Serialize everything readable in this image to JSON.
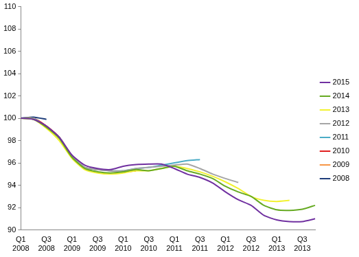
{
  "chart_data": {
    "type": "line",
    "categories": [
      "Q1 2008",
      null,
      "Q3 2008",
      null,
      "Q1 2009",
      null,
      "Q3 2009",
      null,
      "Q1 2010",
      null,
      "Q3 2010",
      null,
      "Q1 2011",
      null,
      "Q3 2011",
      null,
      "Q1 2012",
      null,
      "Q3 2012",
      null,
      "Q1 2013",
      null,
      "Q3 2013",
      null
    ],
    "series": [
      {
        "name": "2008",
        "color": "#1f3e7a",
        "values": [
          100,
          100.1,
          99.9,
          null,
          null,
          null,
          null,
          null,
          null,
          null,
          null,
          null,
          null,
          null,
          null,
          null,
          null,
          null,
          null,
          null,
          null,
          null,
          null,
          null
        ]
      },
      {
        "name": "2009",
        "color": "#f79646",
        "values": [
          100,
          100,
          99.3,
          98.3,
          96.6,
          null,
          null,
          null,
          null,
          null,
          null,
          null,
          null,
          null,
          null,
          null,
          null,
          null,
          null,
          null,
          null,
          null,
          null,
          null
        ]
      },
      {
        "name": "2010",
        "color": "#e02020",
        "values": [
          100,
          100,
          99.3,
          98.3,
          96.6,
          95.6,
          95.4,
          95.3,
          95.2,
          95.3,
          null,
          null,
          null,
          null,
          null,
          null,
          null,
          null,
          null,
          null,
          null,
          null,
          null,
          null
        ]
      },
      {
        "name": "2011",
        "color": "#4bacc6",
        "values": [
          100,
          100,
          99.2,
          98.3,
          96.6,
          95.6,
          95.4,
          95.3,
          95.3,
          95.5,
          95.6,
          95.8,
          96.0,
          96.2,
          96.3,
          null,
          null,
          null,
          null,
          null,
          null,
          null,
          null,
          null
        ]
      },
      {
        "name": "2012",
        "color": "#a5a5a5",
        "values": [
          100,
          100,
          99.2,
          98.3,
          96.6,
          95.6,
          95.4,
          95.3,
          95.3,
          95.5,
          95.6,
          95.7,
          95.8,
          95.9,
          95.5,
          95.0,
          94.6,
          94.25,
          null,
          null,
          null,
          null,
          null,
          null
        ]
      },
      {
        "name": "2013",
        "color": "#f2f230",
        "values": [
          100,
          99.9,
          99.1,
          98.0,
          96.4,
          95.4,
          95.1,
          95.0,
          95.1,
          95.3,
          95.3,
          95.5,
          95.7,
          95.5,
          95.2,
          94.8,
          94.3,
          93.7,
          93.0,
          92.65,
          92.55,
          92.65,
          null,
          null
        ]
      },
      {
        "name": "2014",
        "color": "#66aa22",
        "values": [
          100,
          99.9,
          99.2,
          98.2,
          96.5,
          95.5,
          95.2,
          95.1,
          95.2,
          95.4,
          95.3,
          95.5,
          95.7,
          95.3,
          95.0,
          94.6,
          93.9,
          93.4,
          93.0,
          92.2,
          91.8,
          91.75,
          91.85,
          92.2
        ]
      },
      {
        "name": "2015",
        "color": "#7030a0",
        "values": [
          100,
          99.9,
          99.3,
          98.3,
          96.7,
          95.8,
          95.5,
          95.4,
          95.7,
          95.85,
          95.9,
          95.9,
          95.5,
          95.0,
          94.7,
          94.2,
          93.4,
          92.7,
          92.2,
          91.3,
          90.9,
          90.75,
          90.75,
          91.0
        ]
      }
    ],
    "ylim": [
      90,
      110
    ],
    "yticks": [
      90,
      92,
      94,
      96,
      98,
      100,
      102,
      104,
      106,
      108,
      110
    ],
    "grid": false,
    "legend": "right"
  }
}
